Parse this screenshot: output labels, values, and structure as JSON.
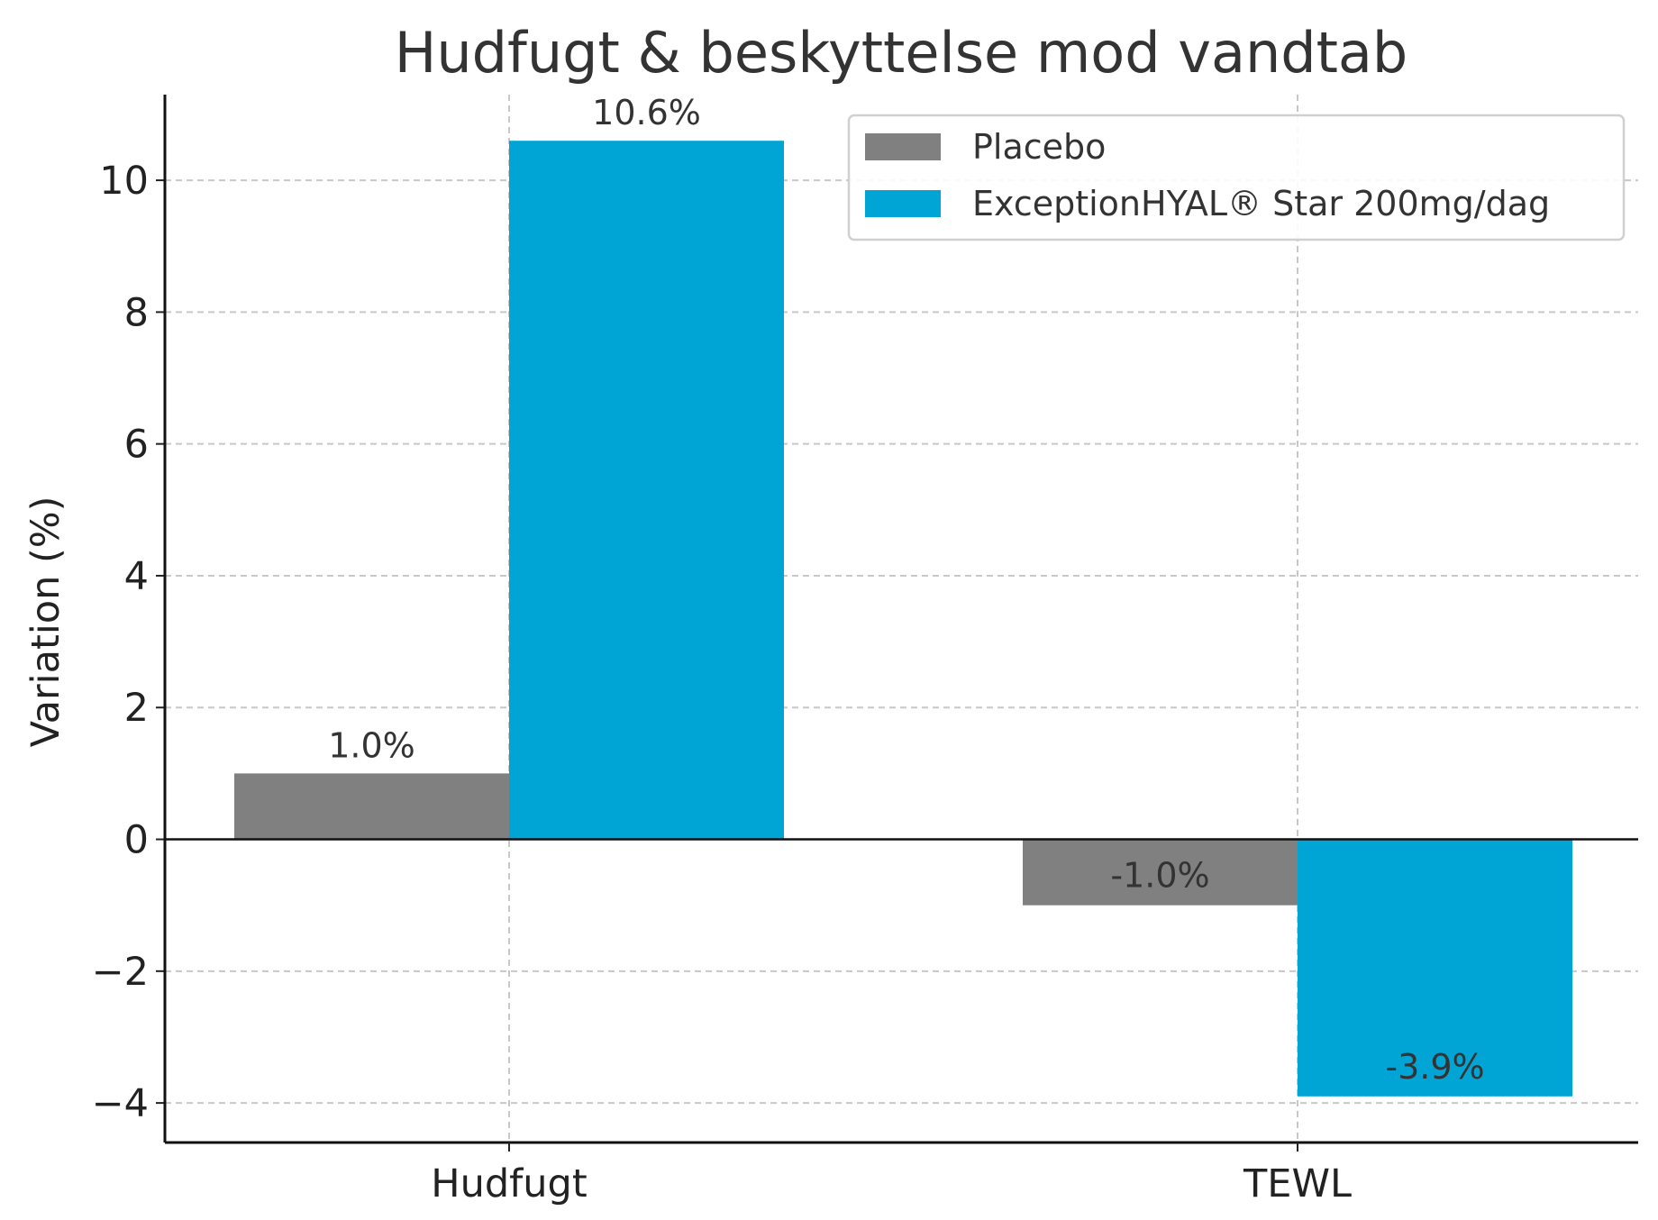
{
  "chart_data": {
    "type": "bar",
    "title": "Hudfugt & beskyttelse mod vandtab",
    "xlabel": "",
    "ylabel": "Variation (%)",
    "categories": [
      "Hudfugt",
      "TEWL"
    ],
    "series": [
      {
        "name": "Placebo",
        "values": [
          1.0,
          -1.0
        ],
        "labels": [
          "1.0%",
          "-1.0%"
        ],
        "color": "#808080"
      },
      {
        "name": "ExceptionHYAL® Star 200mg/dag",
        "values": [
          10.6,
          -3.9
        ],
        "labels": [
          "10.6%",
          "-3.9%"
        ],
        "color": "#00a5d6"
      }
    ],
    "ylim": [
      -4.6,
      11.3
    ],
    "yticks": [
      -4,
      -2,
      0,
      2,
      4,
      6,
      8,
      10
    ],
    "ytick_labels": [
      "−4",
      "−2",
      "0",
      "2",
      "4",
      "6",
      "8",
      "10"
    ],
    "grid": true,
    "legend": "top-right"
  }
}
